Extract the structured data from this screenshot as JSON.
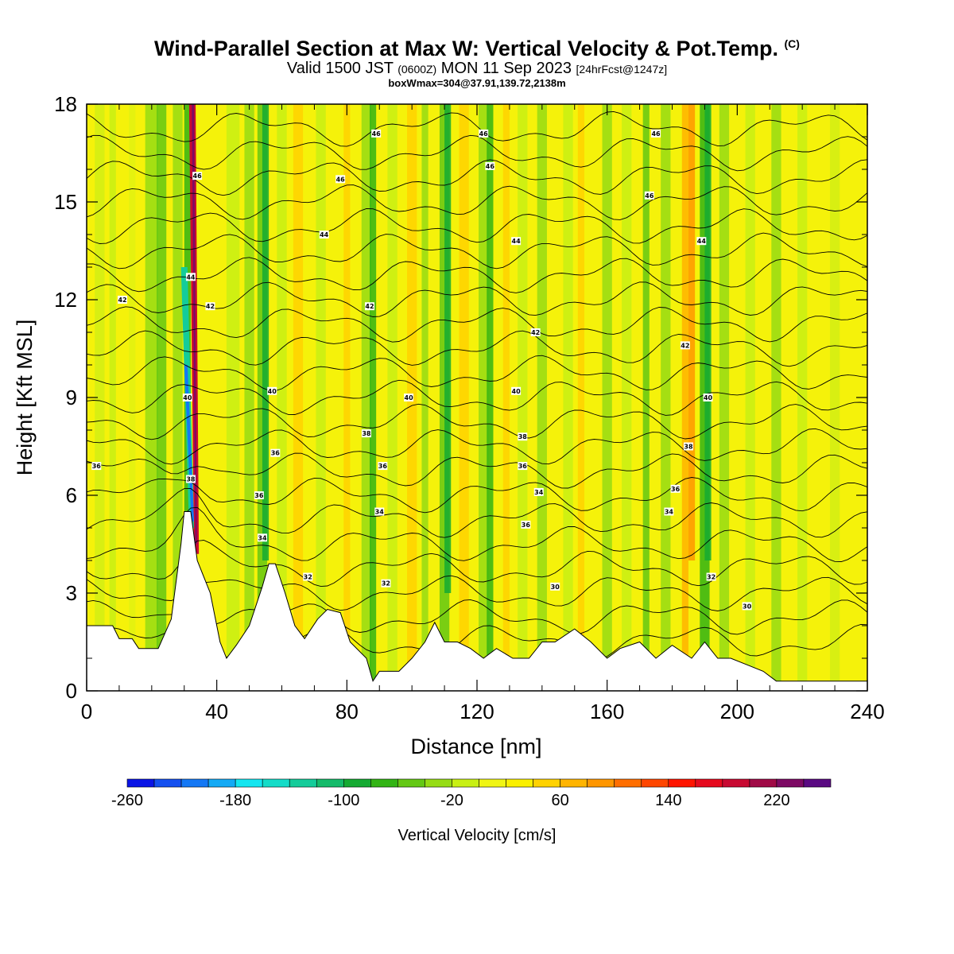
{
  "header": {
    "title": "Wind-Parallel Section at Max W: Vertical Velocity & Pot.Temp.",
    "title_mark": "(C)",
    "valid_prefix": "Valid 1500 JST",
    "valid_z": "(0600Z)",
    "valid_date": "MON 11 Sep 2023",
    "valid_fcst": "[24hrFcst@1247z]",
    "box_info": "boxWmax=304@37.91,139.72,2138m"
  },
  "chart_data": {
    "type": "heatmap",
    "xlabel": "Distance [nm]",
    "ylabel": "Height [Kft MSL]",
    "xlim": [
      0,
      240
    ],
    "ylim": [
      0,
      18
    ],
    "x_ticks": [
      0,
      40,
      80,
      120,
      160,
      200,
      240
    ],
    "y_ticks": [
      0,
      3,
      6,
      9,
      12,
      15,
      18
    ],
    "colorbar": {
      "title": "Vertical Velocity [cm/s]",
      "min": -260,
      "max": 260,
      "step": 20,
      "tick_values": [
        -260,
        -180,
        -100,
        -20,
        60,
        140,
        220
      ],
      "colors": [
        "#0a14e6",
        "#1450f0",
        "#1478f5",
        "#14aaf5",
        "#14e6f0",
        "#14dcc8",
        "#14cc9a",
        "#14bb6a",
        "#14aa32",
        "#32b414",
        "#64c814",
        "#96dc14",
        "#c8f014",
        "#f0f514",
        "#faf000",
        "#ffd200",
        "#ffb400",
        "#ff9600",
        "#ff6e00",
        "#ff4600",
        "#ff1400",
        "#e60a1e",
        "#c80a32",
        "#a00a46",
        "#7d0a64",
        "#5a0a82"
      ]
    },
    "contour_labels": [
      {
        "x": 89,
        "y": 17.1,
        "t": "46"
      },
      {
        "x": 122,
        "y": 17.1,
        "t": "46"
      },
      {
        "x": 175,
        "y": 17.1,
        "t": "46"
      },
      {
        "x": 34,
        "y": 15.8,
        "t": "46"
      },
      {
        "x": 78,
        "y": 15.7,
        "t": "46"
      },
      {
        "x": 124,
        "y": 16.1,
        "t": "46"
      },
      {
        "x": 173,
        "y": 15.2,
        "t": "46"
      },
      {
        "x": 73,
        "y": 14.0,
        "t": "44"
      },
      {
        "x": 132,
        "y": 13.8,
        "t": "44"
      },
      {
        "x": 189,
        "y": 13.8,
        "t": "44"
      },
      {
        "x": 32,
        "y": 12.7,
        "t": "44"
      },
      {
        "x": 11,
        "y": 12.0,
        "t": "42"
      },
      {
        "x": 38,
        "y": 11.8,
        "t": "42"
      },
      {
        "x": 87,
        "y": 11.8,
        "t": "42"
      },
      {
        "x": 138,
        "y": 11.0,
        "t": "42"
      },
      {
        "x": 184,
        "y": 10.6,
        "t": "42"
      },
      {
        "x": 57,
        "y": 9.2,
        "t": "40"
      },
      {
        "x": 99,
        "y": 9.0,
        "t": "40"
      },
      {
        "x": 132,
        "y": 9.2,
        "t": "40"
      },
      {
        "x": 191,
        "y": 9.0,
        "t": "40"
      },
      {
        "x": 31,
        "y": 9.0,
        "t": "40"
      },
      {
        "x": 86,
        "y": 7.9,
        "t": "38"
      },
      {
        "x": 134,
        "y": 7.8,
        "t": "38"
      },
      {
        "x": 185,
        "y": 7.5,
        "t": "38"
      },
      {
        "x": 58,
        "y": 7.3,
        "t": "36"
      },
      {
        "x": 3,
        "y": 6.9,
        "t": "36"
      },
      {
        "x": 91,
        "y": 6.9,
        "t": "36"
      },
      {
        "x": 134,
        "y": 6.9,
        "t": "36"
      },
      {
        "x": 181,
        "y": 6.2,
        "t": "36"
      },
      {
        "x": 32,
        "y": 6.5,
        "t": "38"
      },
      {
        "x": 53,
        "y": 6.0,
        "t": "36"
      },
      {
        "x": 139,
        "y": 6.1,
        "t": "34"
      },
      {
        "x": 90,
        "y": 5.5,
        "t": "34"
      },
      {
        "x": 179,
        "y": 5.5,
        "t": "34"
      },
      {
        "x": 135,
        "y": 5.1,
        "t": "36"
      },
      {
        "x": 54,
        "y": 4.7,
        "t": "34"
      },
      {
        "x": 68,
        "y": 3.5,
        "t": "32"
      },
      {
        "x": 92,
        "y": 3.3,
        "t": "32"
      },
      {
        "x": 144,
        "y": 3.2,
        "t": "30"
      },
      {
        "x": 192,
        "y": 3.5,
        "t": "32"
      },
      {
        "x": 203,
        "y": 2.6,
        "t": "30"
      }
    ]
  }
}
